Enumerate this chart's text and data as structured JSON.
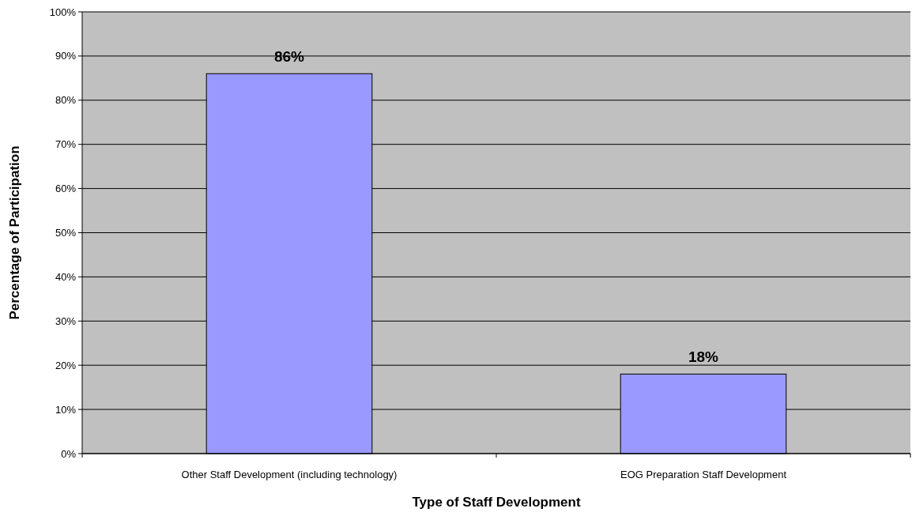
{
  "chart_data": {
    "type": "bar",
    "xlabel": "Type of Staff Development",
    "ylabel": "Percentage of Participation",
    "categories": [
      "Other Staff Development (including technology)",
      "EOG Preparation Staff Development"
    ],
    "values": [
      86,
      18
    ],
    "value_labels": [
      "86%",
      "18%"
    ],
    "color": "#9999ff",
    "ylim": [
      0,
      100
    ],
    "yticks": [
      {
        "value": 0,
        "label": "0%"
      },
      {
        "value": 10,
        "label": "10%"
      },
      {
        "value": 20,
        "label": "20%"
      },
      {
        "value": 30,
        "label": "30%"
      },
      {
        "value": 40,
        "label": "40%"
      },
      {
        "value": 50,
        "label": "50%"
      },
      {
        "value": 60,
        "label": "60%"
      },
      {
        "value": 70,
        "label": "70%"
      },
      {
        "value": 80,
        "label": "80%"
      },
      {
        "value": 90,
        "label": "90%"
      },
      {
        "value": 100,
        "label": "100%"
      }
    ],
    "grid": "y"
  }
}
